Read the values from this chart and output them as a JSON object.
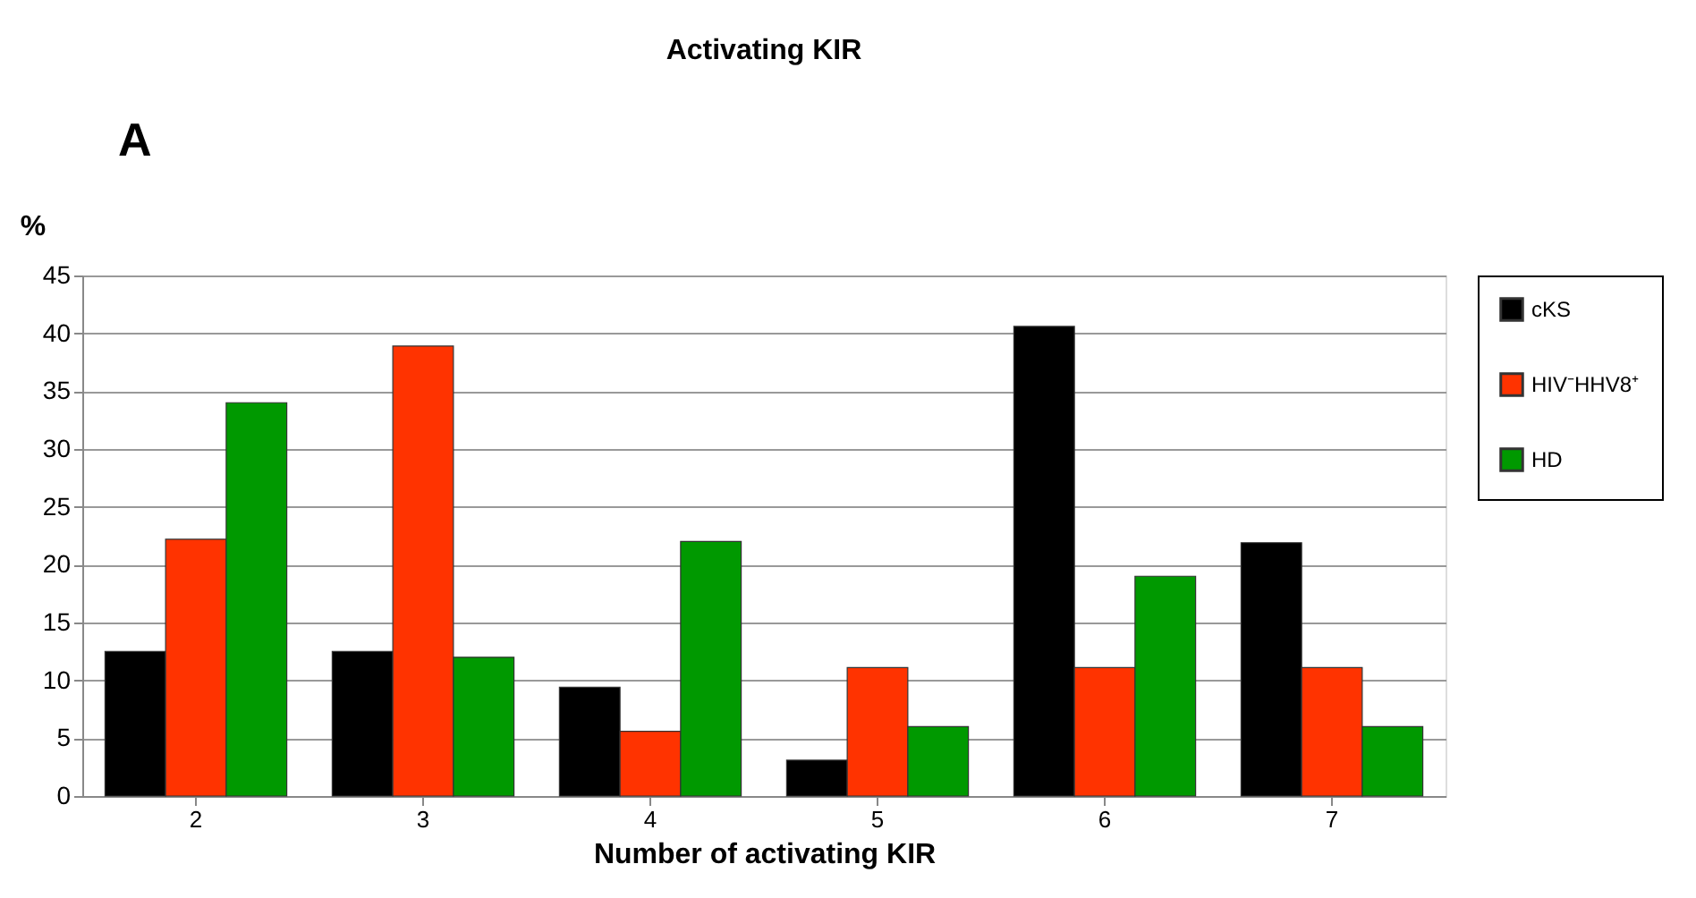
{
  "chart_data": {
    "type": "bar",
    "title": "Activating KIR",
    "xlabel": "Number of activating KIR",
    "ylabel": "%",
    "annotations": [
      "A"
    ],
    "categories": [
      "2",
      "3",
      "4",
      "5",
      "6",
      "7"
    ],
    "series": [
      {
        "name": "cKS",
        "color": "#000000",
        "values": [
          12.5,
          12.5,
          9.4,
          3.1,
          40.6,
          21.9
        ]
      },
      {
        "name": "HIV⁻HHV8⁺",
        "color": "#ff3300",
        "values": [
          22.2,
          38.9,
          5.6,
          11.1,
          11.1,
          11.1
        ]
      },
      {
        "name": "HD",
        "color": "#009900",
        "values": [
          34,
          12,
          22,
          6,
          19,
          6
        ]
      }
    ],
    "ylim": [
      0,
      45
    ],
    "yticks": [
      0,
      5,
      10,
      15,
      20,
      25,
      30,
      35,
      40,
      45
    ],
    "grid": "y",
    "legend": "right"
  }
}
